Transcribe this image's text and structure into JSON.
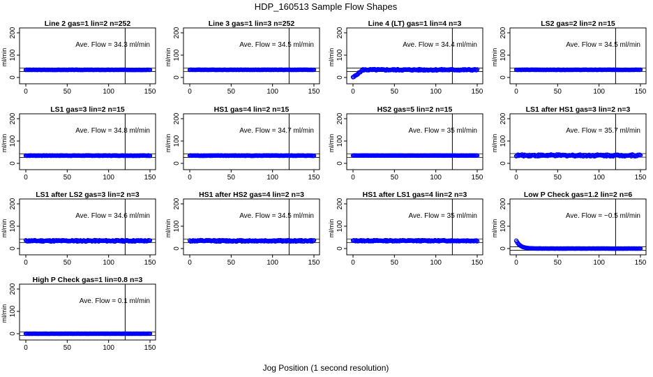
{
  "title": "HDP_160513  Sample Flow Shapes",
  "xlabel": "Jog Position (1 second resolution)",
  "chart_data": [
    {
      "type": "scatter",
      "title": "Line 2 gas=1 lin=2 n=252",
      "ylabel": "ml/min",
      "annotation": "Ave. Flow =  34.3  ml/min",
      "mean_flow": 34.3,
      "vline_x": 120,
      "xlim": [
        0,
        150
      ],
      "ylim": [
        0,
        200
      ],
      "x_ticks": [
        0,
        50,
        100,
        150
      ],
      "y_ticks": [
        0,
        100,
        200
      ],
      "shape": "flat",
      "level": 34.3,
      "spread": 1,
      "points": "x = 0..150 step 1",
      "color": "#0000ff"
    },
    {
      "type": "scatter",
      "title": "Line 3 gas=1 lin=3 n=252",
      "ylabel": "ml/min",
      "annotation": "Ave. Flow =  34.5  ml/min",
      "mean_flow": 34.5,
      "vline_x": 120,
      "xlim": [
        0,
        150
      ],
      "ylim": [
        0,
        200
      ],
      "x_ticks": [
        0,
        50,
        100,
        150
      ],
      "y_ticks": [
        0,
        100,
        200
      ],
      "shape": "flat",
      "level": 34.5,
      "spread": 1,
      "color": "#0000ff"
    },
    {
      "type": "scatter",
      "title": "Line 4 (LT) gas=1 lin=4 n=3",
      "ylabel": "ml/min",
      "annotation": "Ave. Flow =  34.4  ml/min",
      "mean_flow": 34.4,
      "vline_x": 120,
      "xlim": [
        0,
        150
      ],
      "ylim": [
        0,
        200
      ],
      "x_ticks": [
        0,
        50,
        100,
        150
      ],
      "y_ticks": [
        0,
        100,
        200
      ],
      "shape": "ramp",
      "level": 34.4,
      "spread": 6,
      "color": "#0000ff"
    },
    {
      "type": "scatter",
      "title": "LS2 gas=2 lin=2 n=15",
      "ylabel": "ml/min",
      "annotation": "Ave. Flow =  34.5  ml/min",
      "mean_flow": 34.5,
      "vline_x": 120,
      "xlim": [
        0,
        150
      ],
      "ylim": [
        0,
        200
      ],
      "x_ticks": [
        0,
        50,
        100,
        150
      ],
      "y_ticks": [
        0,
        100,
        200
      ],
      "shape": "flat",
      "level": 34.5,
      "spread": 1,
      "color": "#0000ff"
    },
    {
      "type": "scatter",
      "title": "LS1 gas=3 lin=2 n=15",
      "ylabel": "ml/min",
      "annotation": "Ave. Flow =  34.8  ml/min",
      "mean_flow": 34.8,
      "vline_x": 120,
      "xlim": [
        0,
        150
      ],
      "ylim": [
        0,
        200
      ],
      "x_ticks": [
        0,
        50,
        100,
        150
      ],
      "y_ticks": [
        0,
        100,
        200
      ],
      "shape": "flat",
      "level": 34.8,
      "spread": 2,
      "color": "#0000ff"
    },
    {
      "type": "scatter",
      "title": "HS1 gas=4 lin=2 n=15",
      "ylabel": "ml/min",
      "annotation": "Ave. Flow =  34.7  ml/min",
      "mean_flow": 34.7,
      "vline_x": 120,
      "xlim": [
        0,
        150
      ],
      "ylim": [
        0,
        200
      ],
      "x_ticks": [
        0,
        50,
        100,
        150
      ],
      "y_ticks": [
        0,
        100,
        200
      ],
      "shape": "flat",
      "level": 34.7,
      "spread": 2,
      "color": "#0000ff"
    },
    {
      "type": "scatter",
      "title": "HS2 gas=5 lin=2 n=15",
      "ylabel": "ml/min",
      "annotation": "Ave. Flow =  35   ml/min",
      "mean_flow": 35,
      "vline_x": 120,
      "xlim": [
        0,
        150
      ],
      "ylim": [
        0,
        200
      ],
      "x_ticks": [
        0,
        50,
        100,
        150
      ],
      "y_ticks": [
        0,
        100,
        200
      ],
      "shape": "flat",
      "level": 35,
      "spread": 1,
      "color": "#0000ff"
    },
    {
      "type": "scatter",
      "title": "LS1 after HS1 gas=3 lin=2 n=3",
      "ylabel": "ml/min",
      "annotation": "Ave. Flow =  35.7  ml/min",
      "mean_flow": 35.7,
      "vline_x": 120,
      "xlim": [
        0,
        150
      ],
      "ylim": [
        0,
        200
      ],
      "x_ticks": [
        0,
        50,
        100,
        150
      ],
      "y_ticks": [
        0,
        100,
        200
      ],
      "shape": "noisy",
      "level": 35.7,
      "spread": 8,
      "color": "#0000ff"
    },
    {
      "type": "scatter",
      "title": "LS1 after LS2 gas=3 lin=2 n=3",
      "ylabel": "ml/min",
      "annotation": "Ave. Flow =  34.6  ml/min",
      "mean_flow": 34.6,
      "vline_x": 120,
      "xlim": [
        0,
        150
      ],
      "ylim": [
        0,
        200
      ],
      "x_ticks": [
        0,
        50,
        100,
        150
      ],
      "y_ticks": [
        0,
        100,
        200
      ],
      "shape": "noisy",
      "level": 34.6,
      "spread": 6,
      "color": "#0000ff"
    },
    {
      "type": "scatter",
      "title": "HS1 after HS2 gas=4 lin=2 n=3",
      "ylabel": "ml/min",
      "annotation": "Ave. Flow =  34.5  ml/min",
      "mean_flow": 34.5,
      "vline_x": 120,
      "xlim": [
        0,
        150
      ],
      "ylim": [
        0,
        200
      ],
      "x_ticks": [
        0,
        50,
        100,
        150
      ],
      "y_ticks": [
        0,
        100,
        200
      ],
      "shape": "noisy",
      "level": 34.5,
      "spread": 6,
      "color": "#0000ff"
    },
    {
      "type": "scatter",
      "title": "HS1 after LS1 gas=4 lin=2 n=3",
      "ylabel": "ml/min",
      "annotation": "Ave. Flow =  35   ml/min",
      "mean_flow": 35,
      "vline_x": 120,
      "xlim": [
        0,
        150
      ],
      "ylim": [
        0,
        200
      ],
      "x_ticks": [
        0,
        50,
        100,
        150
      ],
      "y_ticks": [
        0,
        100,
        200
      ],
      "shape": "noisy",
      "level": 35,
      "spread": 5,
      "color": "#0000ff"
    },
    {
      "type": "scatter",
      "title": "Low P Check gas=1.2 lin=2 n=6",
      "ylabel": "ml/min",
      "annotation": "Ave. Flow =  −0.5  ml/min",
      "mean_flow": -0.5,
      "vline_x": 120,
      "xlim": [
        0,
        150
      ],
      "ylim": [
        0,
        200
      ],
      "x_ticks": [
        0,
        50,
        100,
        150
      ],
      "y_ticks": [
        0,
        100,
        200
      ],
      "shape": "decay",
      "level": -0.5,
      "spread": 0,
      "color": "#0000ff"
    },
    {
      "type": "scatter",
      "title": "High P Check gas=1 lin=0.8 n=3",
      "ylabel": "ml/min",
      "annotation": "Ave. Flow =  0.1  ml/min",
      "mean_flow": 0.1,
      "vline_x": 120,
      "xlim": [
        0,
        150
      ],
      "ylim": [
        0,
        200
      ],
      "x_ticks": [
        0,
        50,
        100,
        150
      ],
      "y_ticks": [
        0,
        100,
        200
      ],
      "shape": "flat",
      "level": 0.1,
      "spread": 0.5,
      "color": "#0000ff"
    }
  ]
}
